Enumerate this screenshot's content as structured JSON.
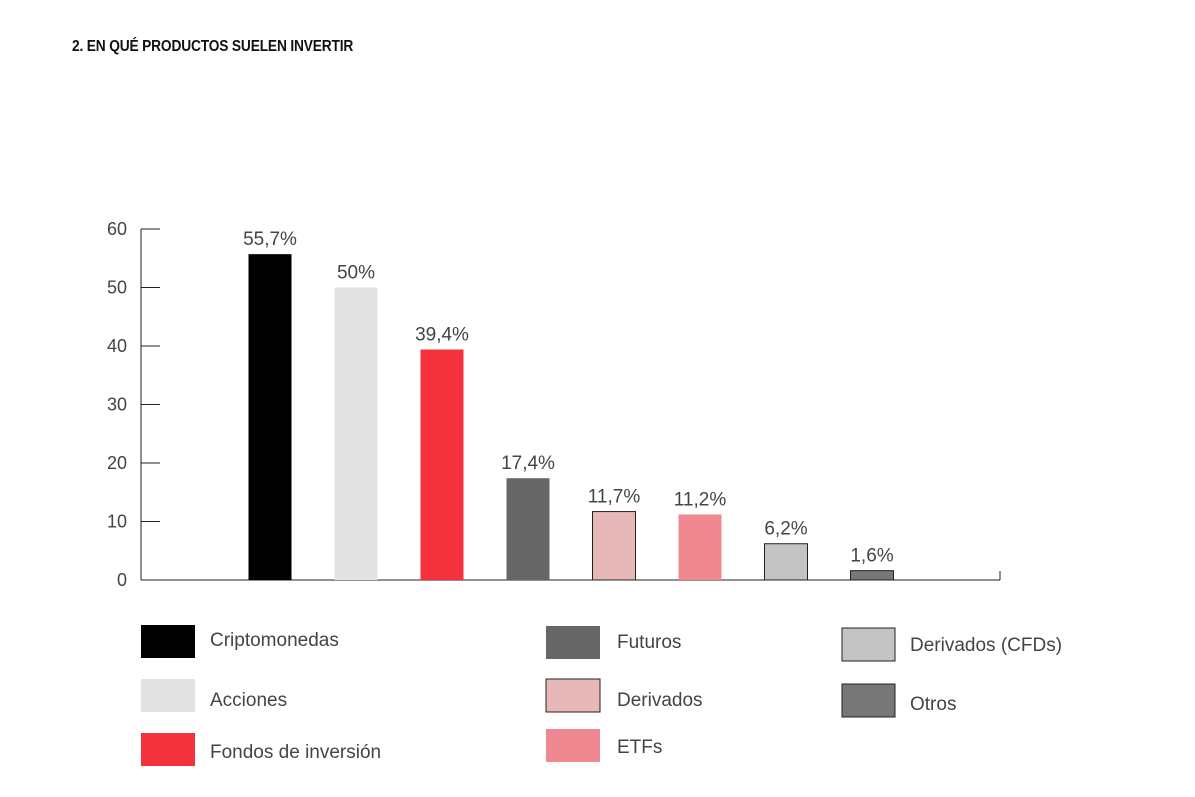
{
  "title": "2. EN QUÉ PRODUCTOS SUELEN INVERTIR",
  "chart_data": {
    "type": "bar",
    "title": "2. EN QUÉ PRODUCTOS SUELEN INVERTIR",
    "xlabel": "",
    "ylabel": "",
    "ylim": [
      0,
      60
    ],
    "yticks": [
      "0",
      "10",
      "20",
      "30",
      "40",
      "50",
      "60"
    ],
    "grid": false,
    "legend_position": "bottom",
    "categories": [
      "Criptomonedas",
      "Acciones",
      "Fondos de inversión",
      "Futuros",
      "Derivados",
      "ETFs",
      "Derivados (CFDs)",
      "Otros"
    ],
    "values": [
      55.7,
      50,
      39.4,
      17.4,
      11.7,
      11.2,
      6.2,
      1.6
    ],
    "data_labels": [
      "55,7%",
      "50%",
      "39,4%",
      "17,4%",
      "11,7%",
      "11,2%",
      "6,2%",
      "1,6%"
    ],
    "colors": [
      "#000000",
      "#e1e2e1",
      "#f3323d",
      "#666666",
      "#e8b8b8",
      "#ef8890",
      "#c4c4c4",
      "#777777"
    ],
    "outlined": [
      false,
      false,
      false,
      false,
      true,
      false,
      true,
      true
    ]
  }
}
